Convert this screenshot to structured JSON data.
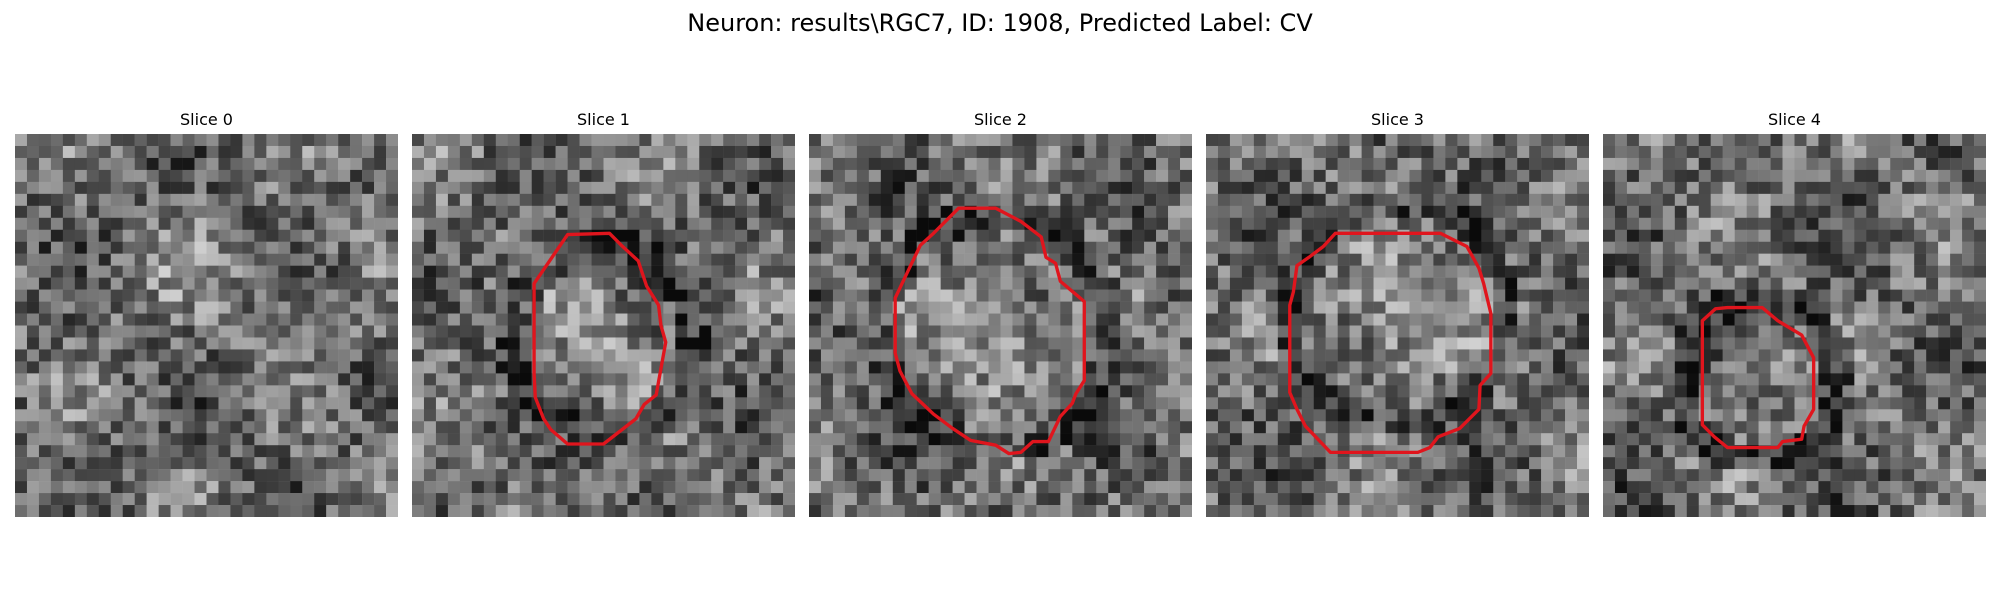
{
  "figure": {
    "title": "Neuron: results\\RGC7, ID: 1908, Predicted Label: CV",
    "contour_color": "#e0151d"
  },
  "panels": [
    {
      "title": "Slice 0",
      "has_contour": false
    },
    {
      "title": "Slice 1",
      "has_contour": true
    },
    {
      "title": "Slice 2",
      "has_contour": true
    },
    {
      "title": "Slice 3",
      "has_contour": true
    },
    {
      "title": "Slice 4",
      "has_contour": true
    }
  ]
}
